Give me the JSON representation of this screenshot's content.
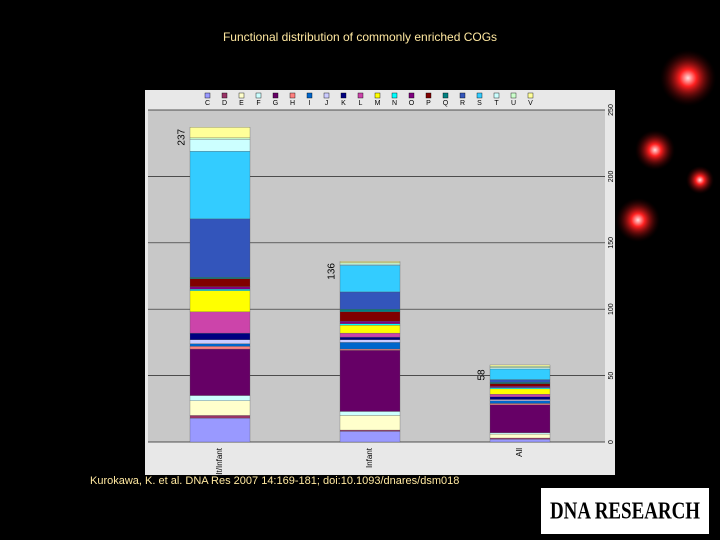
{
  "chart_data": {
    "type": "stacked-bar",
    "title": "Functional distribution of commonly enriched COGs",
    "categories": [
      "Adult/Infant",
      "Infant",
      "All"
    ],
    "totals": [
      237,
      136,
      58
    ],
    "ylim": [
      0,
      250
    ],
    "yticks": [
      0,
      50,
      100,
      150,
      200,
      250
    ],
    "grid": true,
    "series": [
      {
        "name": "C",
        "color": "#9999ff",
        "values": [
          18,
          8,
          2
        ]
      },
      {
        "name": "D",
        "color": "#993366",
        "values": [
          2,
          1,
          1
        ]
      },
      {
        "name": "E",
        "color": "#ffffcc",
        "values": [
          11,
          11,
          3
        ]
      },
      {
        "name": "F",
        "color": "#ccffff",
        "values": [
          4,
          3,
          1
        ]
      },
      {
        "name": "G",
        "color": "#660066",
        "values": [
          35,
          46,
          21
        ]
      },
      {
        "name": "H",
        "color": "#ff8080",
        "values": [
          2,
          1,
          1
        ]
      },
      {
        "name": "I",
        "color": "#0066cc",
        "values": [
          2,
          5,
          2
        ]
      },
      {
        "name": "J",
        "color": "#ccccff",
        "values": [
          3,
          2,
          1
        ]
      },
      {
        "name": "K",
        "color": "#000080",
        "values": [
          5,
          2,
          2
        ]
      },
      {
        "name": "L",
        "color": "#cc44aa",
        "values": [
          16,
          3,
          2
        ]
      },
      {
        "name": "M",
        "color": "#ffff00",
        "values": [
          16,
          6,
          4
        ]
      },
      {
        "name": "N",
        "color": "#00ffff",
        "values": [
          1,
          1,
          1
        ]
      },
      {
        "name": "O",
        "color": "#800080",
        "values": [
          2,
          2,
          1
        ]
      },
      {
        "name": "P",
        "color": "#800000",
        "values": [
          6,
          7,
          2
        ]
      },
      {
        "name": "Q",
        "color": "#008080",
        "values": [
          1,
          2,
          1
        ]
      },
      {
        "name": "R",
        "color": "#3355bb",
        "values": [
          44,
          13,
          2
        ]
      },
      {
        "name": "S",
        "color": "#33ccff",
        "values": [
          51,
          20,
          8
        ]
      },
      {
        "name": "T",
        "color": "#ccffff",
        "values": [
          9,
          1,
          1
        ]
      },
      {
        "name": "U",
        "color": "#ccffcc",
        "values": [
          1,
          1,
          1
        ]
      },
      {
        "name": "V",
        "color": "#ffff99",
        "values": [
          8,
          1,
          1
        ]
      }
    ]
  },
  "citation": "Kurokawa, K. et al. DNA Res 2007 14:169-181; doi:10.1093/dnares/dsm018",
  "logo": "DNA RESEARCH"
}
